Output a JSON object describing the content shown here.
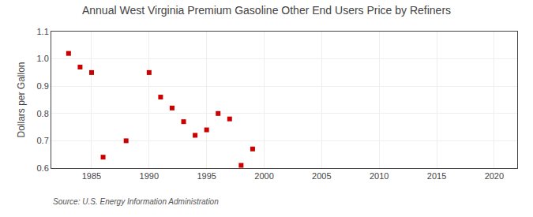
{
  "chart_data": {
    "type": "scatter",
    "title": "Annual West Virginia Premium Gasoline Other End Users Price by Refiners",
    "ylabel": "Dollars per Gallon",
    "source": "Source: U.S. Energy Information Administration",
    "x": [
      1983,
      1984,
      1985,
      1986,
      1988,
      1990,
      1991,
      1992,
      1993,
      1994,
      1995,
      1996,
      1997,
      1998,
      1999
    ],
    "values": [
      1.02,
      0.97,
      0.95,
      0.64,
      0.7,
      0.95,
      0.86,
      0.82,
      0.77,
      0.72,
      0.74,
      0.8,
      0.78,
      0.61,
      0.67
    ],
    "color": "#cc0000",
    "marker": "square",
    "xlim": [
      1981.5,
      2022
    ],
    "ylim": [
      0.6,
      1.1
    ],
    "xticks": [
      1985,
      1990,
      1995,
      2000,
      2005,
      2010,
      2015,
      2020
    ],
    "yticks": [
      0.6,
      0.7,
      0.8,
      0.9,
      {
        "value": 1,
        "label": "1.0"
      },
      1.1
    ],
    "grid": true
  }
}
